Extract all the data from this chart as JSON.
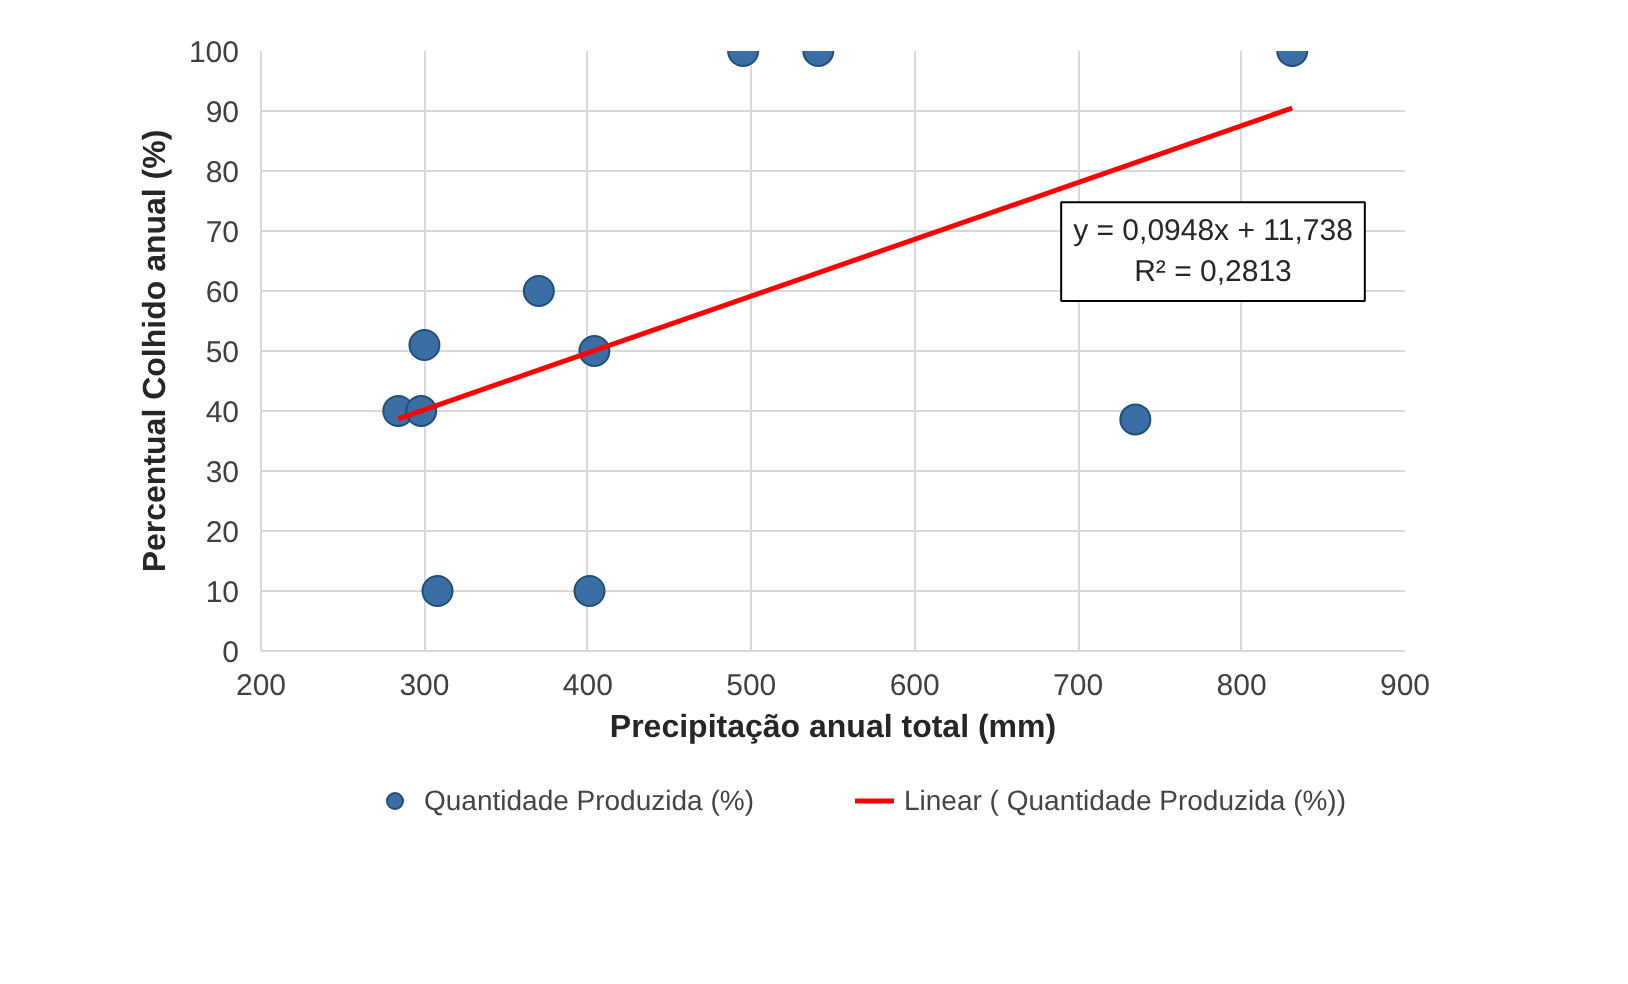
{
  "chart_data": {
    "type": "scatter",
    "xlabel": "Precipitação anual total (mm)",
    "ylabel": "Percentual Colhido anual (%)",
    "xlim": [
      200,
      900
    ],
    "xticks": [
      200,
      300,
      400,
      500,
      600,
      700,
      800,
      900
    ],
    "ylim": [
      0,
      100
    ],
    "yticks": [
      0,
      10,
      20,
      30,
      40,
      50,
      60,
      70,
      80,
      90,
      100
    ],
    "grid": true,
    "legend": "bottom",
    "marker": "circle",
    "series": [
      {
        "name": "Quantidade Produzida (%)",
        "color": "#3a6ea5",
        "x": [
          284,
          298,
          300,
          308,
          370,
          404,
          401,
          495,
          541,
          735,
          831
        ],
        "values": [
          40,
          40,
          51,
          10,
          60,
          50,
          10,
          100,
          100,
          38.6,
          100
        ]
      },
      {
        "name": "Linear ( Quantidade Produzida (%))",
        "type": "line",
        "color": "#ff0000",
        "line_style": "solid",
        "marker": "none",
        "x": [
          284,
          831
        ],
        "values": [
          38.7,
          90.5
        ]
      }
    ],
    "annotations": [
      "y = 0,0948x + 11,738\nR² = 0,2813"
    ]
  }
}
